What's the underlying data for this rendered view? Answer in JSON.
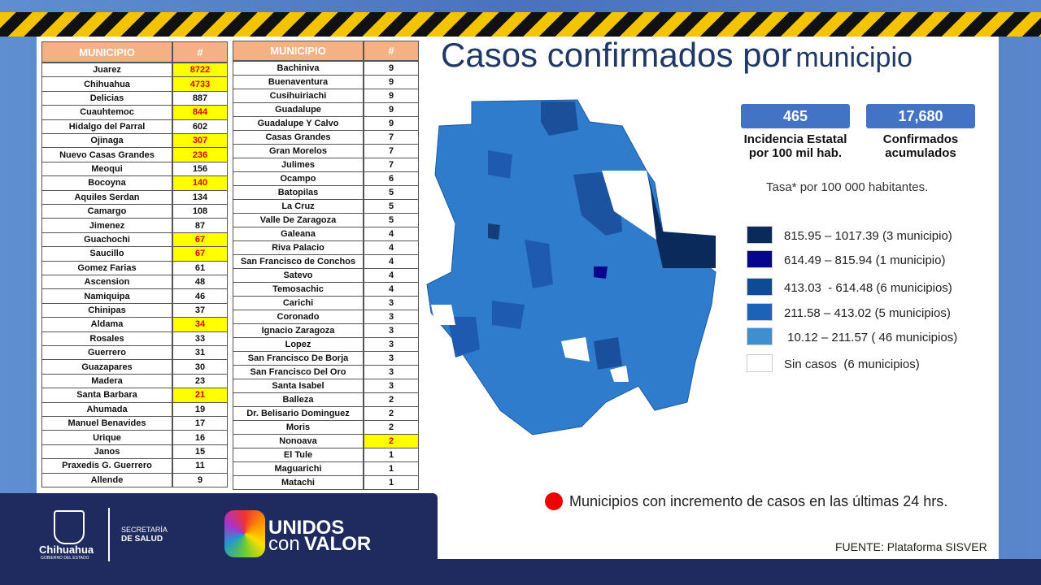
{
  "title": {
    "main": "Casos confirmados por",
    "sub": "municipio"
  },
  "table_left": {
    "headers": [
      "MUNICIPIO",
      "#"
    ],
    "highlight_color": "#ffff00",
    "rows": [
      {
        "name": "Juarez",
        "count": 8722,
        "highlight": true
      },
      {
        "name": "Chihuahua",
        "count": 4733,
        "highlight": true
      },
      {
        "name": "Delicias",
        "count": 887,
        "highlight": false
      },
      {
        "name": "Cuauhtemoc",
        "count": 844,
        "highlight": true
      },
      {
        "name": "Hidalgo del Parral",
        "count": 602,
        "highlight": false
      },
      {
        "name": "Ojinaga",
        "count": 307,
        "highlight": true
      },
      {
        "name": "Nuevo Casas Grandes",
        "count": 236,
        "highlight": true
      },
      {
        "name": "Meoqui",
        "count": 156,
        "highlight": false
      },
      {
        "name": "Bocoyna",
        "count": 140,
        "highlight": true
      },
      {
        "name": "Aquiles Serdan",
        "count": 134,
        "highlight": false
      },
      {
        "name": "Camargo",
        "count": 108,
        "highlight": false
      },
      {
        "name": "Jimenez",
        "count": 87,
        "highlight": false
      },
      {
        "name": "Guachochi",
        "count": 67,
        "highlight": true
      },
      {
        "name": "Saucillo",
        "count": 67,
        "highlight": true
      },
      {
        "name": "Gomez Farias",
        "count": 61,
        "highlight": false
      },
      {
        "name": "Ascension",
        "count": 48,
        "highlight": false
      },
      {
        "name": "Namiquipa",
        "count": 46,
        "highlight": false
      },
      {
        "name": "Chinipas",
        "count": 37,
        "highlight": false
      },
      {
        "name": "Aldama",
        "count": 34,
        "highlight": true
      },
      {
        "name": "Rosales",
        "count": 33,
        "highlight": false
      },
      {
        "name": "Guerrero",
        "count": 31,
        "highlight": false
      },
      {
        "name": "Guazapares",
        "count": 30,
        "highlight": false
      },
      {
        "name": "Madera",
        "count": 23,
        "highlight": false
      },
      {
        "name": "Santa Barbara",
        "count": 21,
        "highlight": true
      },
      {
        "name": "Ahumada",
        "count": 19,
        "highlight": false
      },
      {
        "name": "Manuel Benavides",
        "count": 17,
        "highlight": false
      },
      {
        "name": "Urique",
        "count": 16,
        "highlight": false
      },
      {
        "name": "Janos",
        "count": 15,
        "highlight": false
      },
      {
        "name": "Praxedis G. Guerrero",
        "count": 11,
        "highlight": false
      },
      {
        "name": "Allende",
        "count": 9,
        "highlight": false
      }
    ]
  },
  "table_right": {
    "headers": [
      "MUNICIPIO",
      "#"
    ],
    "highlight_color": "#ffff00",
    "rows": [
      {
        "name": "Bachiniva",
        "count": 9,
        "highlight": false
      },
      {
        "name": "Buenaventura",
        "count": 9,
        "highlight": false
      },
      {
        "name": "Cusihuiriachi",
        "count": 9,
        "highlight": false
      },
      {
        "name": "Guadalupe",
        "count": 9,
        "highlight": false
      },
      {
        "name": "Guadalupe Y Calvo",
        "count": 9,
        "highlight": false
      },
      {
        "name": "Casas Grandes",
        "count": 7,
        "highlight": false
      },
      {
        "name": "Gran Morelos",
        "count": 7,
        "highlight": false
      },
      {
        "name": "Julimes",
        "count": 7,
        "highlight": false
      },
      {
        "name": "Ocampo",
        "count": 6,
        "highlight": false
      },
      {
        "name": "Batopilas",
        "count": 5,
        "highlight": false
      },
      {
        "name": "La Cruz",
        "count": 5,
        "highlight": false
      },
      {
        "name": "Valle De Zaragoza",
        "count": 5,
        "highlight": false
      },
      {
        "name": "Galeana",
        "count": 4,
        "highlight": false
      },
      {
        "name": "Riva Palacio",
        "count": 4,
        "highlight": false
      },
      {
        "name": "San Francisco de Conchos",
        "count": 4,
        "highlight": false
      },
      {
        "name": "Satevo",
        "count": 4,
        "highlight": false
      },
      {
        "name": "Temosachic",
        "count": 4,
        "highlight": false
      },
      {
        "name": "Carichi",
        "count": 3,
        "highlight": false
      },
      {
        "name": "Coronado",
        "count": 3,
        "highlight": false
      },
      {
        "name": "Ignacio Zaragoza",
        "count": 3,
        "highlight": false
      },
      {
        "name": "Lopez",
        "count": 3,
        "highlight": false
      },
      {
        "name": "San Francisco De Borja",
        "count": 3,
        "highlight": false
      },
      {
        "name": "San Francisco Del Oro",
        "count": 3,
        "highlight": false
      },
      {
        "name": "Santa Isabel",
        "count": 3,
        "highlight": false
      },
      {
        "name": "Balleza",
        "count": 2,
        "highlight": false
      },
      {
        "name": "Dr. Belisario Dominguez",
        "count": 2,
        "highlight": false
      },
      {
        "name": "Moris",
        "count": 2,
        "highlight": false
      },
      {
        "name": "Nonoava",
        "count": 2,
        "highlight": true
      },
      {
        "name": "El Tule",
        "count": 1,
        "highlight": false
      },
      {
        "name": "Maguarichi",
        "count": 1,
        "highlight": false
      },
      {
        "name": "Matachi",
        "count": 1,
        "highlight": false
      }
    ]
  },
  "stats": [
    {
      "value": 465,
      "label": "Incidencia Estatal por 100 mil hab."
    },
    {
      "value": "17,680",
      "label": "Confirmados acumulados"
    }
  ],
  "rate_note": "Tasa* por 100 000 habitantes.",
  "legend": [
    {
      "color": "#0b2a5c",
      "label": "815.95 – 1017.39 (3 municipio)"
    },
    {
      "color": "#06068c",
      "label": "614.49 – 815.94 (1 municipio)"
    },
    {
      "color": "#0f4a94",
      "label": "413.03  - 614.48 (6 municipios)"
    },
    {
      "color": "#1b62b8",
      "label": "211.58 – 413.02 (5 municipios)"
    },
    {
      "color": "#3f8fd0",
      "label": " 10.12 – 211.57 ( 46 municipios)"
    },
    {
      "color": "#ffffff",
      "label": "Sin casos  (6 municipios)"
    }
  ],
  "increment_note": "Municipios con incremento de casos en las últimas 24 hrs.",
  "source": "FUENTE: Plataforma SISVER",
  "footer": {
    "gov_name": "Chihuahua",
    "gov_sub": "GOBIERNO DEL ESTADO",
    "secretaria_1": "SECRETARÍA",
    "secretaria_2": "DE SALUD",
    "brand_1": "UNIDOS",
    "brand_2": "con",
    "brand_3": "VALOR"
  }
}
